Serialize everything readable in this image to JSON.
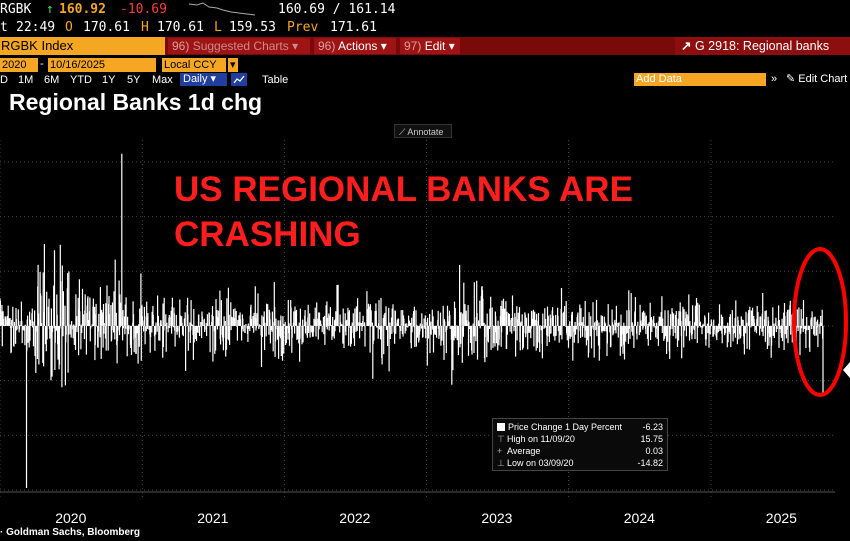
{
  "ticker": {
    "symbol": "RGBK",
    "arrow": "↑",
    "last": "160.92",
    "change": "-10.69",
    "bid_ask": "160.69 / 161.14",
    "row2_prefix": "t",
    "time": "22:49",
    "open_label": "O",
    "open": "170.61",
    "high_label": "H",
    "high": "170.61",
    "low_label": "L",
    "low": "159.53",
    "prev_label": "Prev",
    "prev": "171.61"
  },
  "function_bar": {
    "security": "RGBK Index",
    "suggested_num": "96)",
    "suggested": "Suggested Charts",
    "actions_num": "96)",
    "actions": "Actions",
    "edit_num": "97)",
    "edit": "Edit",
    "window_title": "G 2918: Regional banks"
  },
  "toolbar": {
    "start_date": "2020",
    "end_date": "10/16/2025",
    "currency": "Local CCY",
    "ranges": [
      "D",
      "1M",
      "6M",
      "YTD",
      "1Y",
      "5Y",
      "Max"
    ],
    "frequency": "Daily",
    "table_label": "Table",
    "add_data_placeholder": "Add Data",
    "edit_chart": "Edit Chart"
  },
  "chart_title": "Regional Banks 1d chg",
  "annotate_label": "Annotate",
  "headline": [
    "US REGIONAL BANKS ARE",
    "CRASHING"
  ],
  "legend": {
    "series_label": "Price Change 1 Day Percent",
    "series_value": "-6.23",
    "high_label": "High on 11/09/20",
    "high_value": "15.75",
    "avg_label": "Average",
    "avg_value": "0.03",
    "low_label": "Low on 03/09/20",
    "low_value": "-14.82"
  },
  "source": "Goldman Sachs, Bloomberg",
  "colors": {
    "headline": "#ff1e1e",
    "circle": "#ff0000",
    "series": "#ffffff",
    "security_bg": "#f5a623"
  },
  "chart_data": {
    "type": "bar",
    "title": "Regional Banks 1d chg",
    "series": [
      {
        "name": "Price Change 1 Day Percent",
        "last": -6.23,
        "high": 15.75,
        "high_date": "11/09/20",
        "average": 0.03,
        "low": -14.82,
        "low_date": "03/09/20"
      }
    ],
    "x_ticks": [
      "2020",
      "2021",
      "2022",
      "2023",
      "2024",
      "2025"
    ],
    "x_range": [
      "2020-01-01",
      "2025-10-16"
    ],
    "y_range": [
      -15,
      17
    ],
    "grid": true,
    "legend_position": "bottom-center"
  }
}
